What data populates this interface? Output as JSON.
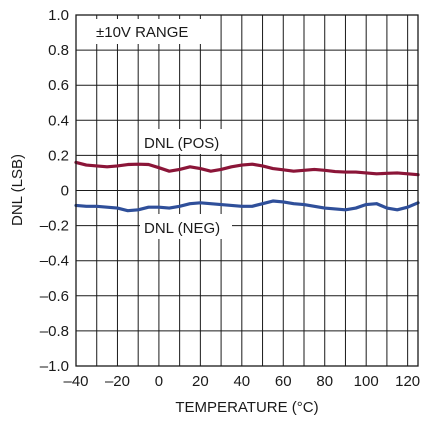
{
  "chart_data": {
    "type": "line",
    "xlabel": "TEMPERATURE (°C)",
    "ylabel": "DNL (LSB)",
    "xlim": [
      -40,
      125
    ],
    "ylim": [
      -1.0,
      1.0
    ],
    "x_ticks": [
      -40,
      -20,
      0,
      20,
      40,
      60,
      80,
      100,
      120
    ],
    "x_tick_labels": [
      "–40",
      "–20",
      "0",
      "20",
      "40",
      "60",
      "80",
      "100",
      "120"
    ],
    "y_ticks": [
      -1.0,
      -0.8,
      -0.6,
      -0.4,
      -0.2,
      0,
      0.2,
      0.4,
      0.6,
      0.8,
      1.0
    ],
    "y_tick_labels": [
      "–1.0",
      "–0.8",
      "–0.6",
      "–0.4",
      "–0.2",
      "0",
      "0.2",
      "0.4",
      "0.6",
      "0.8",
      "1.0"
    ],
    "grid": true,
    "annotations": {
      "range": "±10V RANGE",
      "pos_label": "DNL (POS)",
      "neg_label": "DNL (NEG)"
    },
    "series": [
      {
        "name": "DNL (POS)",
        "color": "#8b1538",
        "x": [
          -40,
          -35,
          -30,
          -25,
          -20,
          -15,
          -10,
          -5,
          0,
          5,
          10,
          15,
          20,
          25,
          30,
          35,
          40,
          45,
          50,
          55,
          60,
          65,
          70,
          75,
          80,
          85,
          90,
          95,
          100,
          105,
          110,
          115,
          120,
          125
        ],
        "y": [
          0.16,
          0.145,
          0.14,
          0.135,
          0.14,
          0.148,
          0.15,
          0.148,
          0.13,
          0.11,
          0.12,
          0.135,
          0.125,
          0.11,
          0.12,
          0.135,
          0.145,
          0.15,
          0.14,
          0.125,
          0.118,
          0.11,
          0.115,
          0.12,
          0.115,
          0.108,
          0.105,
          0.105,
          0.1,
          0.095,
          0.098,
          0.1,
          0.095,
          0.09
        ]
      },
      {
        "name": "DNL (NEG)",
        "color": "#2f4f9a",
        "x": [
          -40,
          -35,
          -30,
          -25,
          -20,
          -15,
          -10,
          -5,
          0,
          5,
          10,
          15,
          20,
          25,
          30,
          35,
          40,
          45,
          50,
          55,
          60,
          65,
          70,
          75,
          80,
          85,
          90,
          95,
          100,
          105,
          110,
          115,
          120,
          125
        ],
        "y": [
          -0.085,
          -0.09,
          -0.09,
          -0.095,
          -0.1,
          -0.115,
          -0.11,
          -0.095,
          -0.095,
          -0.1,
          -0.09,
          -0.075,
          -0.07,
          -0.075,
          -0.08,
          -0.085,
          -0.09,
          -0.09,
          -0.075,
          -0.06,
          -0.065,
          -0.075,
          -0.08,
          -0.09,
          -0.1,
          -0.105,
          -0.11,
          -0.1,
          -0.08,
          -0.075,
          -0.1,
          -0.11,
          -0.095,
          -0.07
        ]
      }
    ]
  }
}
